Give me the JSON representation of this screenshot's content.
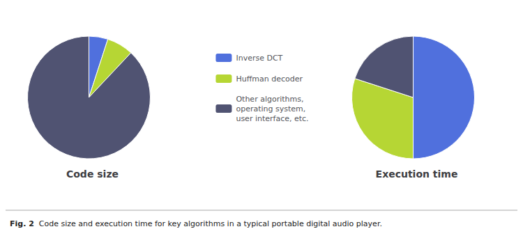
{
  "chart_data": [
    {
      "type": "pie",
      "title": "Code size",
      "categories": [
        "Inverse DCT",
        "Huffman decoder",
        "Other algorithms,\noperating system,\nuser interface, etc."
      ],
      "values": [
        5,
        7,
        88
      ],
      "legend": "center",
      "annotations": [
        "Fig. 2",
        "Code size and execution time for key algorithms in a typical portable digital audio player."
      ]
    },
    {
      "type": "pie",
      "title": "Execution time",
      "categories": [
        "Inverse DCT",
        "Huffman decoder",
        "Other algorithms,\noperating system,\nuser interface, etc."
      ],
      "values": [
        50,
        30,
        20
      ]
    }
  ]
}
